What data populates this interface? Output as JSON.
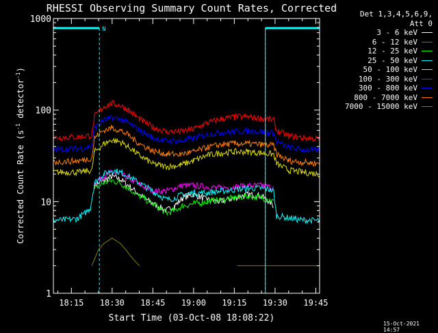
{
  "chart_data": {
    "type": "line",
    "title": "RHESSI Observing Summary Count Rates, Corrected",
    "xlabel": "Start Time (03-Oct-08 18:08:22)",
    "ylabel_pre": "Corrected Count Rate (s",
    "ylabel_sup1": "-1",
    "ylabel_mid": " detector",
    "ylabel_sup2": "-1",
    "ylabel_post": ")",
    "yscale": "log",
    "ylim": [
      1,
      1000
    ],
    "xlim_min": [
      8.367,
      106.4
    ],
    "x_ticks": [
      {
        "label": "18:15",
        "min": 15
      },
      {
        "label": "18:30",
        "min": 30
      },
      {
        "label": "18:45",
        "min": 45
      },
      {
        "label": "19:00",
        "min": 60
      },
      {
        "label": "19:15",
        "min": 75
      },
      {
        "label": "19:30",
        "min": 90
      },
      {
        "label": "19:45",
        "min": 105
      }
    ],
    "y_ticks": [
      {
        "label": "1",
        "v": 1
      },
      {
        "label": "10",
        "v": 10
      },
      {
        "label": "100",
        "v": 100
      },
      {
        "label": "1000",
        "v": 1000
      }
    ],
    "attenuator_state": "Att 0",
    "detectors": "Det 1,3,4,5,6,9,",
    "saa_marker_label": "N",
    "night_intervals_min": [
      [
        8.367,
        25.3
      ],
      [
        86.4,
        106.4
      ]
    ],
    "series": [
      {
        "name": "3 - 6 keV",
        "color": "#ffffff",
        "x": [
          8.4,
          22.5,
          23.5,
          27,
          30,
          33,
          36,
          40,
          45,
          50,
          53,
          56,
          60,
          65,
          70,
          75,
          80,
          85,
          88,
          89.5,
          90.5
        ],
        "y": [
          null,
          null,
          15,
          17,
          19,
          17.5,
          15,
          12,
          9.5,
          8,
          9,
          11,
          12,
          10.5,
          10,
          11,
          12,
          11.5,
          10,
          9,
          null
        ]
      },
      {
        "name": "6 - 12 keV",
        "color": "#ff00ff",
        "x": [
          8.4,
          22.5,
          23.5,
          27,
          30,
          33,
          36,
          40,
          45,
          50,
          53,
          56,
          60,
          65,
          70,
          75,
          80,
          85,
          88,
          89.5,
          90.5
        ],
        "y": [
          null,
          null,
          16,
          19,
          21,
          20,
          18,
          15.5,
          13,
          13,
          14,
          15,
          15,
          14.5,
          14,
          14.5,
          15,
          15,
          14.5,
          14,
          null
        ]
      },
      {
        "name": "12 - 25 keV",
        "color": "#00ff00",
        "x": [
          8.4,
          22.5,
          23.5,
          27,
          30,
          33,
          36,
          40,
          45,
          50,
          53,
          56,
          60,
          65,
          70,
          75,
          80,
          85,
          88,
          89.5,
          90.5
        ],
        "y": [
          null,
          null,
          14,
          16,
          17,
          16,
          14,
          11.5,
          9.5,
          7.5,
          8,
          9,
          9.5,
          10,
          10.5,
          11,
          11.5,
          11,
          10.5,
          10,
          null
        ]
      },
      {
        "name": "25 - 50 keV",
        "color": "#00ffff",
        "x": [
          8.4,
          12,
          17,
          20,
          22,
          23.5,
          27,
          30,
          33,
          36,
          40,
          45,
          50,
          53,
          56,
          60,
          65,
          70,
          75,
          80,
          85,
          88,
          89.5,
          90.5,
          100,
          106.4
        ],
        "y": [
          6.3,
          6.3,
          6.5,
          7.5,
          8.5,
          16,
          20,
          22,
          21,
          19,
          16,
          13,
          10.5,
          11,
          12,
          12.5,
          12.5,
          13,
          13.5,
          14,
          14,
          13.5,
          13,
          7,
          6.3,
          6.2
        ]
      },
      {
        "name": "50 - 100 keV",
        "color": "#dddd00",
        "x": [
          8.4,
          18,
          22.5,
          23.5,
          27,
          30,
          33,
          36,
          40,
          45,
          50,
          55,
          60,
          65,
          70,
          75,
          80,
          85,
          89.5,
          90.5,
          95,
          100,
          106.4
        ],
        "y": [
          21,
          21,
          22,
          35,
          43,
          47,
          45,
          40,
          32,
          26,
          24,
          25,
          28,
          32,
          34,
          35,
          35,
          34,
          33,
          26,
          22,
          21,
          20
        ]
      },
      {
        "name": "100 - 300 keV",
        "color": "#ff0000",
        "x": [
          8.4,
          18,
          22.5,
          23.5,
          27,
          30,
          33,
          36,
          40,
          45,
          50,
          55,
          60,
          65,
          70,
          75,
          80,
          85,
          89.5,
          90.5,
          95,
          100,
          106.4
        ],
        "y": [
          50,
          51,
          53,
          85,
          110,
          118,
          112,
          100,
          80,
          65,
          58,
          58,
          62,
          72,
          80,
          84,
          84,
          81,
          78,
          60,
          52,
          50,
          48
        ]
      },
      {
        "name": "300 - 800 keV",
        "color": "#0000ff",
        "x": [
          8.4,
          18,
          22.5,
          23.5,
          27,
          30,
          33,
          36,
          40,
          45,
          50,
          55,
          60,
          65,
          70,
          75,
          80,
          85,
          89.5,
          90.5,
          95,
          100,
          106.4
        ],
        "y": [
          37,
          38,
          40,
          65,
          77,
          82,
          79,
          72,
          60,
          50,
          46,
          46,
          49,
          54,
          57,
          58,
          59,
          58,
          56,
          45,
          39,
          37,
          36
        ]
      },
      {
        "name": "800 - 7000 keV",
        "color": "#ff8000",
        "x": [
          8.4,
          18,
          22.5,
          23.5,
          27,
          30,
          33,
          36,
          40,
          45,
          50,
          55,
          60,
          65,
          70,
          75,
          80,
          85,
          89.5,
          90.5,
          95,
          100,
          106.4
        ],
        "y": [
          27,
          28,
          30,
          50,
          60,
          64,
          60,
          53,
          43,
          36,
          33,
          33,
          35,
          39,
          42,
          43,
          43,
          42,
          41,
          33,
          28,
          27,
          26
        ]
      },
      {
        "name": "7000 - 15000 keV",
        "color": "#808000",
        "x": [
          8.4,
          22,
          22.5,
          25,
          27,
          30,
          33,
          35,
          37,
          40,
          41,
          75,
          76,
          90,
          106.4
        ],
        "y": [
          null,
          null,
          2.0,
          3.0,
          3.5,
          4.0,
          3.5,
          3.0,
          2.5,
          2.0,
          null,
          null,
          2.0,
          2.0,
          2.0
        ]
      }
    ]
  },
  "timestamp": "15-Oct-2021 14:57"
}
